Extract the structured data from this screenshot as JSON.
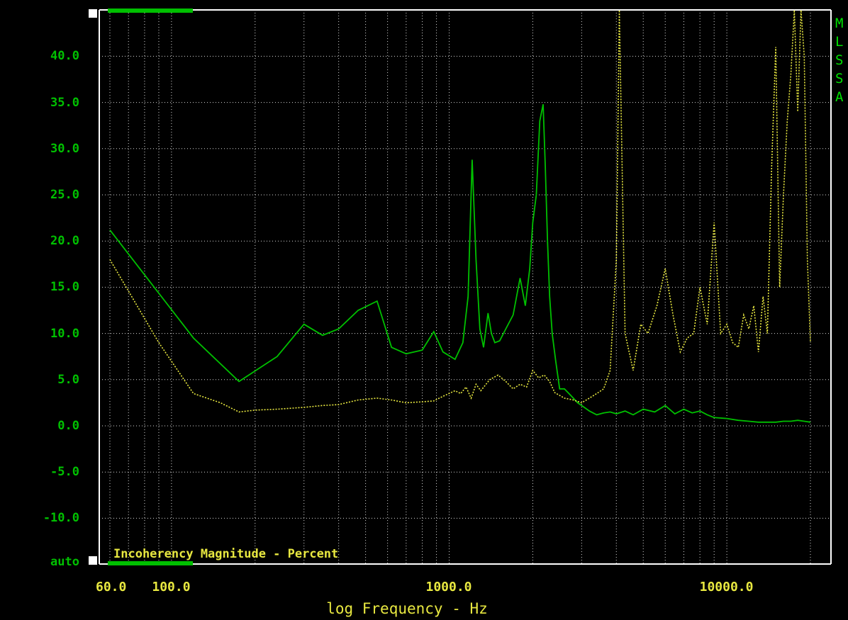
{
  "chart_data": {
    "type": "line",
    "title": "Incoherency Magnitude - Percent",
    "xlabel": "log Frequency - Hz",
    "xscale": "log",
    "xlim": [
      60,
      20000
    ],
    "ylim": [
      -15,
      45
    ],
    "x_tick_labels": [
      "60.0",
      "100.0",
      "1000.0",
      "10000.0"
    ],
    "x_tick_values": [
      60,
      100,
      1000,
      10000
    ],
    "y_tick_labels": [
      "40.0",
      "35.0",
      "30.0",
      "25.0",
      "20.0",
      "15.0",
      "10.0",
      "5.0",
      "0.0",
      "-5.0",
      "-10.0",
      "auto"
    ],
    "y_tick_values": [
      40,
      35,
      30,
      25,
      20,
      15,
      10,
      5,
      0,
      -5,
      -10,
      -15
    ],
    "side_letters": [
      "M",
      "L",
      "S",
      "S",
      "A"
    ],
    "grid": true,
    "colors": {
      "background": "#000000",
      "frame": "#ffffff",
      "green_trace": "#00c000",
      "yellow_trace": "#e8e840",
      "axis_text_green": "#00c000",
      "axis_text_yellow": "#e8e840"
    },
    "series": [
      {
        "color": "#00c000",
        "style": "solid",
        "x": [
          60,
          120,
          175,
          240,
          300,
          350,
          400,
          470,
          550,
          620,
          700,
          800,
          880,
          950,
          1050,
          1120,
          1170,
          1210,
          1250,
          1290,
          1330,
          1380,
          1420,
          1460,
          1520,
          1600,
          1700,
          1800,
          1880,
          1950,
          2000,
          2060,
          2120,
          2180,
          2220,
          2260,
          2300,
          2350,
          2420,
          2500,
          2600,
          2700,
          2800,
          2900,
          3000,
          3200,
          3400,
          3600,
          3800,
          4000,
          4300,
          4600,
          5000,
          5500,
          6000,
          6500,
          7000,
          7500,
          8000,
          8500,
          9000,
          10000,
          11000,
          12000,
          13000,
          14000,
          15000,
          16000,
          17000,
          18000,
          19000,
          20000
        ],
        "y": [
          21.2,
          9.5,
          4.8,
          7.5,
          11.0,
          9.8,
          10.5,
          12.5,
          13.5,
          8.5,
          7.8,
          8.2,
          10.2,
          8.0,
          7.2,
          9.0,
          14.0,
          28.8,
          18.0,
          10.5,
          8.5,
          12.2,
          10.0,
          9.0,
          9.2,
          10.5,
          12.0,
          16.0,
          13.0,
          17.0,
          22.0,
          25.0,
          33.0,
          34.8,
          28.0,
          20.0,
          14.0,
          10.0,
          7.0,
          4.0,
          4.0,
          3.5,
          3.0,
          2.5,
          2.2,
          1.6,
          1.2,
          1.4,
          1.5,
          1.3,
          1.6,
          1.2,
          1.8,
          1.5,
          2.2,
          1.3,
          1.8,
          1.4,
          1.6,
          1.2,
          0.9,
          0.8,
          0.6,
          0.5,
          0.4,
          0.4,
          0.4,
          0.5,
          0.5,
          0.6,
          0.5,
          0.4
        ]
      },
      {
        "color": "#e8e840",
        "style": "dotted",
        "x": [
          60,
          90,
          120,
          150,
          175,
          200,
          240,
          300,
          350,
          400,
          470,
          550,
          620,
          700,
          800,
          880,
          950,
          1050,
          1100,
          1150,
          1200,
          1250,
          1300,
          1400,
          1500,
          1600,
          1700,
          1800,
          1900,
          2000,
          2100,
          2200,
          2300,
          2400,
          2600,
          2800,
          3000,
          3200,
          3400,
          3600,
          3800,
          4000,
          4100,
          4300,
          4600,
          4900,
          5200,
          5600,
          6000,
          6400,
          6800,
          7200,
          7600,
          8000,
          8500,
          9000,
          9500,
          10000,
          10500,
          11000,
          11500,
          12000,
          12500,
          13000,
          13500,
          14000,
          14500,
          15000,
          15500,
          16000,
          16500,
          17000,
          17500,
          18000,
          18500,
          19000,
          19500,
          20000
        ],
        "y": [
          18.0,
          9.0,
          3.5,
          2.5,
          1.5,
          1.7,
          1.8,
          2.0,
          2.2,
          2.3,
          2.8,
          3.0,
          2.8,
          2.5,
          2.6,
          2.7,
          3.2,
          3.8,
          3.5,
          4.2,
          3.0,
          4.5,
          3.8,
          5.0,
          5.5,
          4.8,
          4.0,
          4.5,
          4.2,
          6.0,
          5.2,
          5.5,
          4.8,
          3.6,
          3.0,
          2.8,
          2.5,
          3.0,
          3.5,
          4.0,
          6.0,
          18.0,
          45.0,
          10.0,
          6.0,
          11.0,
          10.0,
          13.0,
          17.0,
          12.0,
          8.0,
          9.5,
          10.0,
          15.0,
          11.0,
          22.0,
          10.0,
          11.0,
          9.0,
          8.5,
          12.0,
          10.5,
          13.0,
          8.0,
          14.0,
          10.0,
          28.0,
          41.0,
          15.0,
          25.0,
          33.0,
          38.0,
          45.0,
          34.0,
          45.0,
          40.0,
          18.0,
          9.0
        ]
      }
    ]
  }
}
